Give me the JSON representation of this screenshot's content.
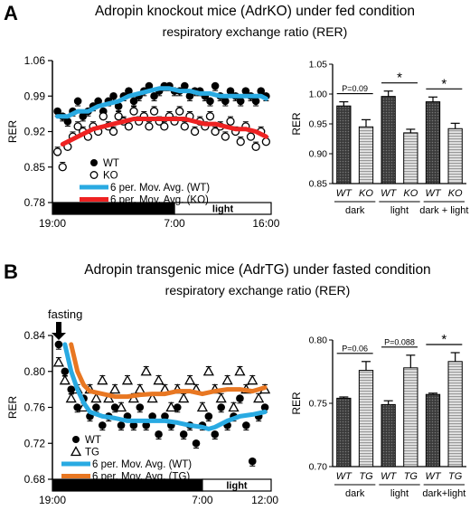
{
  "panels": {
    "A": {
      "letter": "A",
      "title": "Adropin knockout mice (AdrKO) under fed condition",
      "subtitle": "respiratory exchange ratio (RER)"
    },
    "B": {
      "letter": "B",
      "title": "Adropin transgenic mice (AdrTG) under fasted condition",
      "subtitle": "respiratory exchange ratio (RER)",
      "annotation": "fasting"
    }
  },
  "colors": {
    "wt_avg": "#29aae2",
    "ko_avg": "#ee2222",
    "tg_avg": "#e87722",
    "bar_dark": "#444444",
    "bar_light": "#bbbbbb"
  },
  "chart_data": [
    {
      "id": "A-line",
      "type": "line",
      "xlabel": "",
      "ylabel": "RER",
      "ylim": [
        0.78,
        1.06
      ],
      "yticks": [
        "0.78",
        "0.85",
        "0.92",
        "0.99",
        "1.06"
      ],
      "yticks_values": [
        0.78,
        0.85,
        0.92,
        0.99,
        1.06
      ],
      "xticks": [
        "19:00",
        "7:00",
        "16:00"
      ],
      "xticks_hours": [
        0,
        12,
        21
      ],
      "x_range_hours": [
        0,
        21.5
      ],
      "period_bar": [
        {
          "label": "dark",
          "from": 0,
          "to": 12
        },
        {
          "label": "light",
          "from": 12,
          "to": 21.5
        }
      ],
      "legend": [
        {
          "label": "WT",
          "marker": "filled-circle"
        },
        {
          "label": "KO",
          "marker": "open-circle"
        },
        {
          "label": "6 per. Mov. Avg. (WT)",
          "marker": "line-wt"
        },
        {
          "label": "6 per. Mov. Avg. (KO)",
          "marker": "line-ko"
        }
      ],
      "series": [
        {
          "name": "WT",
          "marker": "filled-circle",
          "x": [
            0.5,
            1.0,
            1.5,
            2.0,
            2.5,
            3.0,
            3.5,
            4.0,
            4.5,
            5.0,
            5.5,
            6.0,
            6.5,
            7.0,
            7.5,
            8.0,
            8.5,
            9.0,
            9.5,
            10.0,
            10.5,
            11.0,
            11.5,
            12.0,
            12.5,
            13.0,
            13.5,
            14.0,
            14.5,
            15.0,
            15.5,
            16.0,
            16.5,
            17.0,
            17.5,
            18.0,
            18.5,
            19.0,
            19.5,
            20.0,
            20.5,
            21.0
          ],
          "y": [
            0.96,
            0.95,
            0.94,
            0.96,
            0.98,
            0.95,
            0.96,
            0.97,
            0.98,
            0.96,
            0.98,
            0.99,
            0.97,
            0.99,
            1.0,
            0.98,
            0.99,
            1.0,
            1.01,
            0.99,
            1.0,
            1.01,
            1.01,
            1.0,
            1.0,
            1.01,
            0.99,
            1.0,
            1.0,
            0.99,
            0.98,
            1.01,
            0.99,
            0.98,
            1.0,
            0.99,
            0.98,
            1.0,
            0.99,
            0.98,
            1.0,
            0.99
          ]
        },
        {
          "name": "KO",
          "marker": "open-circle",
          "x": [
            0.5,
            1.0,
            1.5,
            2.0,
            2.5,
            3.0,
            3.5,
            4.0,
            4.5,
            5.0,
            5.5,
            6.0,
            6.5,
            7.0,
            7.5,
            8.0,
            8.5,
            9.0,
            9.5,
            10.0,
            10.5,
            11.0,
            11.5,
            12.0,
            12.5,
            13.0,
            13.5,
            14.0,
            14.5,
            15.0,
            15.5,
            16.0,
            16.5,
            17.0,
            17.5,
            18.0,
            18.5,
            19.0,
            19.5,
            20.0,
            20.5,
            21.0
          ],
          "y": [
            0.88,
            0.85,
            0.89,
            0.91,
            0.93,
            0.92,
            0.91,
            0.93,
            0.92,
            0.95,
            0.93,
            0.92,
            0.95,
            0.94,
            0.93,
            0.96,
            0.94,
            0.95,
            0.93,
            0.96,
            0.94,
            0.93,
            0.95,
            0.94,
            0.96,
            0.93,
            0.95,
            0.92,
            0.94,
            0.93,
            0.95,
            0.92,
            0.93,
            0.91,
            0.94,
            0.92,
            0.9,
            0.93,
            0.91,
            0.89,
            0.92,
            0.9
          ]
        },
        {
          "name": "6 per. Mov. Avg. (WT)",
          "marker": "line-wt",
          "x": [
            0.5,
            1.5,
            2.5,
            3.5,
            4.5,
            5.5,
            6.5,
            7.5,
            8.5,
            9.5,
            10.5,
            11.5,
            12.5,
            13.5,
            14.5,
            15.5,
            16.5,
            17.5,
            18.5,
            19.5,
            20.5,
            21.0
          ],
          "y": [
            0.95,
            0.95,
            0.96,
            0.96,
            0.97,
            0.975,
            0.98,
            0.99,
            0.995,
            1.0,
            1.005,
            1.005,
            1.0,
            1.0,
            0.995,
            0.995,
            0.99,
            0.99,
            0.99,
            0.99,
            0.99,
            0.985
          ]
        },
        {
          "name": "6 per. Mov. Avg. (KO)",
          "marker": "line-ko",
          "x": [
            1.0,
            2.0,
            3.0,
            4.0,
            5.0,
            6.0,
            7.0,
            8.0,
            9.0,
            10.0,
            11.0,
            12.0,
            13.0,
            14.0,
            15.0,
            16.0,
            17.0,
            18.0,
            19.0,
            20.0,
            21.0
          ],
          "y": [
            0.895,
            0.905,
            0.915,
            0.925,
            0.93,
            0.935,
            0.94,
            0.945,
            0.945,
            0.945,
            0.945,
            0.945,
            0.945,
            0.94,
            0.935,
            0.935,
            0.93,
            0.925,
            0.925,
            0.92,
            0.91
          ]
        }
      ]
    },
    {
      "id": "A-bar",
      "type": "bar",
      "ylabel": "RER",
      "ylim": [
        0.85,
        1.05
      ],
      "yticks": [
        "0.85",
        "0.90",
        "0.95",
        "1.00",
        "1.05"
      ],
      "yticks_values": [
        0.85,
        0.9,
        0.95,
        1.0,
        1.05
      ],
      "categories": [
        "WT",
        "KO",
        "WT",
        "KO",
        "WT",
        "KO"
      ],
      "values": [
        0.98,
        0.945,
        0.996,
        0.935,
        0.987,
        0.942
      ],
      "errors": [
        0.007,
        0.012,
        0.009,
        0.006,
        0.008,
        0.009
      ],
      "groups": [
        "dark",
        "light",
        "dark + light"
      ],
      "significance": [
        {
          "label": "P=0.09",
          "from": 0,
          "to": 1
        },
        {
          "label": "*",
          "from": 2,
          "to": 3
        },
        {
          "label": "*",
          "from": 4,
          "to": 5
        }
      ]
    },
    {
      "id": "B-line",
      "type": "line",
      "xlabel": "",
      "ylabel": "RER",
      "ylim": [
        0.68,
        0.84
      ],
      "yticks": [
        "0.68",
        "0.72",
        "0.76",
        "0.80",
        "0.84"
      ],
      "yticks_values": [
        0.68,
        0.72,
        0.76,
        0.8,
        0.84
      ],
      "xticks": [
        "19:00",
        "7:00",
        "12:00"
      ],
      "xticks_hours": [
        0,
        12,
        17
      ],
      "x_range_hours": [
        0,
        17.5
      ],
      "period_bar": [
        {
          "label": "dark",
          "from": 0,
          "to": 12
        },
        {
          "label": "light",
          "from": 12,
          "to": 17.5
        }
      ],
      "legend": [
        {
          "label": "WT",
          "marker": "filled-circle"
        },
        {
          "label": "TG",
          "marker": "open-triangle"
        },
        {
          "label": "6 per. Mov. Avg. (WT)",
          "marker": "line-wt"
        },
        {
          "label": "6 per. Mov. Avg. (TG)",
          "marker": "line-tg"
        }
      ],
      "series": [
        {
          "name": "WT",
          "marker": "filled-circle",
          "x": [
            0.5,
            1.0,
            1.5,
            2.0,
            2.5,
            3.0,
            3.5,
            4.0,
            4.5,
            5.0,
            5.5,
            6.0,
            6.5,
            7.0,
            7.5,
            8.0,
            8.5,
            9.0,
            9.5,
            10.0,
            10.5,
            11.0,
            11.5,
            12.0,
            12.5,
            13.0,
            13.5,
            14.0,
            14.5,
            15.0,
            15.5,
            16.0,
            16.5,
            17.0
          ],
          "y": [
            0.83,
            0.8,
            0.78,
            0.76,
            0.77,
            0.75,
            0.76,
            0.74,
            0.75,
            0.76,
            0.74,
            0.75,
            0.74,
            0.76,
            0.74,
            0.75,
            0.73,
            0.75,
            0.74,
            0.76,
            0.73,
            0.74,
            0.72,
            0.74,
            0.75,
            0.73,
            0.76,
            0.74,
            0.75,
            0.77,
            0.74,
            0.7,
            0.75,
            0.76
          ]
        },
        {
          "name": "TG",
          "marker": "open-triangle",
          "x": [
            0.5,
            1.0,
            1.5,
            2.0,
            2.5,
            3.0,
            3.5,
            4.0,
            4.5,
            5.0,
            5.5,
            6.0,
            6.5,
            7.0,
            7.5,
            8.0,
            8.5,
            9.0,
            9.5,
            10.0,
            10.5,
            11.0,
            11.5,
            12.0,
            12.5,
            13.0,
            13.5,
            14.0,
            14.5,
            15.0,
            15.5,
            16.0,
            16.5,
            17.0
          ],
          "y": [
            0.81,
            0.79,
            0.77,
            0.78,
            0.76,
            0.78,
            0.77,
            0.79,
            0.77,
            0.78,
            0.76,
            0.79,
            0.77,
            0.78,
            0.8,
            0.77,
            0.79,
            0.78,
            0.76,
            0.78,
            0.77,
            0.79,
            0.78,
            0.76,
            0.8,
            0.78,
            0.77,
            0.79,
            0.76,
            0.8,
            0.78,
            0.79,
            0.77,
            0.78
          ]
        },
        {
          "name": "6 per. Mov. Avg. (WT)",
          "marker": "line-wt",
          "x": [
            1.0,
            1.5,
            2.0,
            2.5,
            3.0,
            4.0,
            5.0,
            6.0,
            7.0,
            8.0,
            9.0,
            10.0,
            11.0,
            12.0,
            12.5,
            13.0,
            14.0,
            15.0,
            16.0,
            17.0
          ],
          "y": [
            0.83,
            0.8,
            0.78,
            0.765,
            0.755,
            0.75,
            0.748,
            0.745,
            0.745,
            0.745,
            0.745,
            0.743,
            0.74,
            0.738,
            0.736,
            0.738,
            0.745,
            0.75,
            0.752,
            0.755
          ]
        },
        {
          "name": "6 per. Mov. Avg. (TG)",
          "marker": "line-tg",
          "x": [
            1.5,
            2.0,
            2.5,
            3.0,
            4.0,
            5.0,
            6.0,
            7.0,
            8.0,
            9.0,
            10.0,
            11.0,
            12.0,
            13.0,
            14.0,
            15.0,
            16.0,
            17.0
          ],
          "y": [
            0.83,
            0.8,
            0.785,
            0.778,
            0.775,
            0.772,
            0.772,
            0.774,
            0.775,
            0.775,
            0.778,
            0.778,
            0.775,
            0.778,
            0.78,
            0.78,
            0.778,
            0.782
          ]
        }
      ]
    },
    {
      "id": "B-bar",
      "type": "bar",
      "ylabel": "RER",
      "ylim": [
        0.7,
        0.8
      ],
      "yticks": [
        "0.70",
        "0.75",
        "0.80"
      ],
      "yticks_values": [
        0.7,
        0.75,
        0.8
      ],
      "categories": [
        "WT",
        "TG",
        "WT",
        "TG",
        "WT",
        "TG"
      ],
      "values": [
        0.754,
        0.776,
        0.749,
        0.778,
        0.757,
        0.783
      ],
      "errors": [
        0.001,
        0.007,
        0.003,
        0.01,
        0.001,
        0.007
      ],
      "groups": [
        "dark",
        "light",
        "dark+light"
      ],
      "significance": [
        {
          "label": "P=0.06",
          "from": 0,
          "to": 1
        },
        {
          "label": "P=0.088",
          "from": 2,
          "to": 3
        },
        {
          "label": "*",
          "from": 4,
          "to": 5
        }
      ]
    }
  ]
}
